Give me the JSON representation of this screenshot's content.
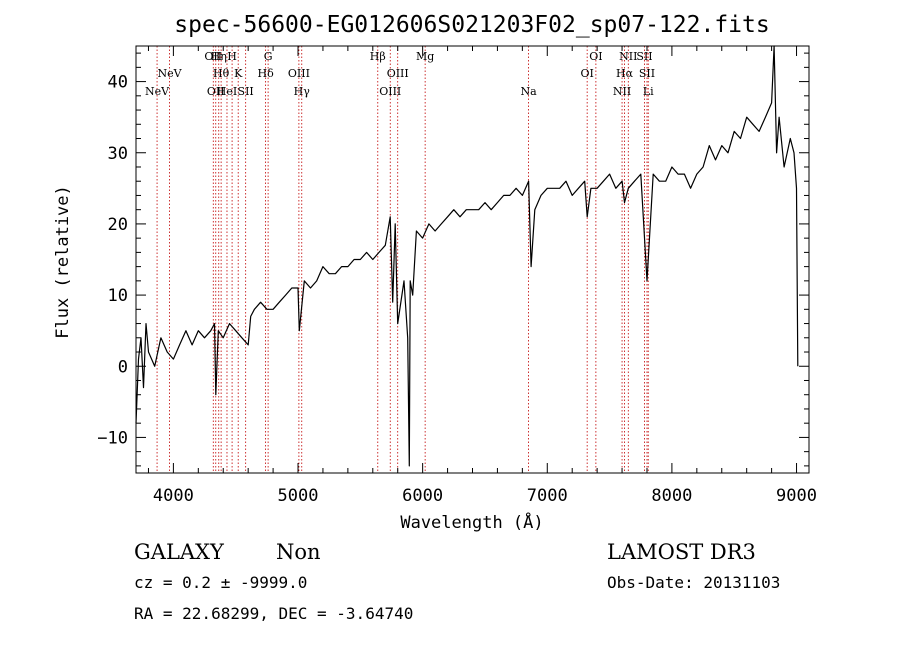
{
  "chart_data": {
    "type": "line",
    "title": "spec-56600-EG012606S021203F02_sp07-122.fits",
    "xlabel": "Wavelength (Å)",
    "ylabel": "Flux (relative)",
    "xlim": [
      3700,
      9100
    ],
    "ylim": [
      -15,
      45
    ],
    "xticks": [
      4000,
      5000,
      6000,
      7000,
      8000,
      9000
    ],
    "yticks": [
      -10,
      0,
      10,
      20,
      30,
      40
    ],
    "grid": false,
    "series": [
      {
        "x": [
          3700,
          3720,
          3740,
          3760,
          3780,
          3800,
          3850,
          3900,
          3950,
          4000,
          4050,
          4100,
          4150,
          4200,
          4250,
          4300,
          4330,
          4340,
          4360,
          4400,
          4450,
          4500,
          4550,
          4600,
          4620,
          4650,
          4700,
          4750,
          4800,
          4850,
          4900,
          4950,
          5000,
          5010,
          5050,
          5100,
          5150,
          5200,
          5250,
          5300,
          5350,
          5400,
          5450,
          5500,
          5550,
          5600,
          5650,
          5700,
          5740,
          5760,
          5780,
          5800,
          5850,
          5880,
          5893,
          5900,
          5920,
          5950,
          6000,
          6050,
          6100,
          6150,
          6200,
          6250,
          6300,
          6350,
          6400,
          6450,
          6500,
          6550,
          6600,
          6650,
          6700,
          6750,
          6800,
          6850,
          6870,
          6900,
          6950,
          7000,
          7050,
          7100,
          7150,
          7200,
          7250,
          7300,
          7320,
          7350,
          7400,
          7450,
          7500,
          7550,
          7600,
          7620,
          7650,
          7700,
          7750,
          7800,
          7850,
          7900,
          7950,
          8000,
          8050,
          8100,
          8150,
          8200,
          8250,
          8300,
          8350,
          8400,
          8450,
          8500,
          8550,
          8600,
          8650,
          8700,
          8750,
          8800,
          8820,
          8840,
          8860,
          8900,
          8950,
          8980,
          9000,
          9010
        ],
        "y": [
          -8,
          1,
          4,
          -3,
          6,
          2,
          0,
          4,
          2,
          1,
          3,
          5,
          3,
          5,
          4,
          5,
          6,
          -4,
          5,
          4,
          6,
          5,
          4,
          3,
          7,
          8,
          9,
          8,
          8,
          9,
          10,
          11,
          11,
          5,
          12,
          11,
          12,
          14,
          13,
          13,
          14,
          14,
          15,
          15,
          16,
          15,
          16,
          17,
          21,
          9,
          20,
          6,
          12,
          4,
          -14,
          12,
          10,
          19,
          18,
          20,
          19,
          20,
          21,
          22,
          21,
          22,
          22,
          22,
          23,
          22,
          23,
          24,
          24,
          25,
          24,
          26,
          14,
          22,
          24,
          25,
          25,
          25,
          26,
          24,
          25,
          26,
          21,
          25,
          25,
          26,
          27,
          25,
          26,
          23,
          25,
          26,
          27,
          12,
          27,
          26,
          26,
          28,
          27,
          27,
          25,
          27,
          28,
          31,
          29,
          31,
          30,
          33,
          32,
          35,
          34,
          33,
          35,
          37,
          45,
          30,
          35,
          28,
          32,
          30,
          25,
          0
        ]
      }
    ],
    "annotations": [
      {
        "wave": 3869,
        "label": "NeV",
        "row": 2
      },
      {
        "wave": 3969,
        "label": "NeV",
        "row": 1
      },
      {
        "wave": 4320,
        "label": "OII",
        "row": 0
      },
      {
        "wave": 4340,
        "label": "OII",
        "row": 2
      },
      {
        "wave": 4364,
        "label": "Hη",
        "row": 0
      },
      {
        "wave": 4383,
        "label": "Hθ",
        "row": 1
      },
      {
        "wave": 4430,
        "label": "HeI",
        "row": 2
      },
      {
        "wave": 4471,
        "label": "H",
        "row": 0
      },
      {
        "wave": 4520,
        "label": "K",
        "row": 1
      },
      {
        "wave": 4580,
        "label": "SII",
        "row": 2
      },
      {
        "wave": 4740,
        "label": "Hδ",
        "row": 1
      },
      {
        "wave": 4760,
        "label": "G",
        "row": 0
      },
      {
        "wave": 5007,
        "label": "OIII",
        "row": 1
      },
      {
        "wave": 5030,
        "label": "Hγ",
        "row": 2
      },
      {
        "wave": 5640,
        "label": "Hβ",
        "row": 0
      },
      {
        "wave": 5740,
        "label": "OIII",
        "row": 2
      },
      {
        "wave": 5800,
        "label": "OIII",
        "row": 1
      },
      {
        "wave": 6020,
        "label": "Mg",
        "row": 0
      },
      {
        "wave": 6850,
        "label": "Na",
        "row": 2
      },
      {
        "wave": 7320,
        "label": "OI",
        "row": 1
      },
      {
        "wave": 7390,
        "label": "OI",
        "row": 0
      },
      {
        "wave": 7600,
        "label": "NII",
        "row": 2
      },
      {
        "wave": 7620,
        "label": "Hα",
        "row": 1
      },
      {
        "wave": 7650,
        "label": "NII",
        "row": 0
      },
      {
        "wave": 7780,
        "label": "SII",
        "row": 0
      },
      {
        "wave": 7800,
        "label": "SII",
        "row": 1
      },
      {
        "wave": 7810,
        "label": "Li",
        "row": 2
      }
    ]
  },
  "info": {
    "object_class": "GALAXY",
    "subclass": "Non",
    "survey": "LAMOST DR3",
    "cz_line": "cz = 0.2 ± -9999.0",
    "obs_date_line": "Obs-Date: 20131103",
    "radec_line": "RA =  22.68299, DEC =  -3.64740"
  },
  "colors": {
    "spectrum": "#000000",
    "line_marker": "#c00000",
    "axes": "#000000"
  }
}
